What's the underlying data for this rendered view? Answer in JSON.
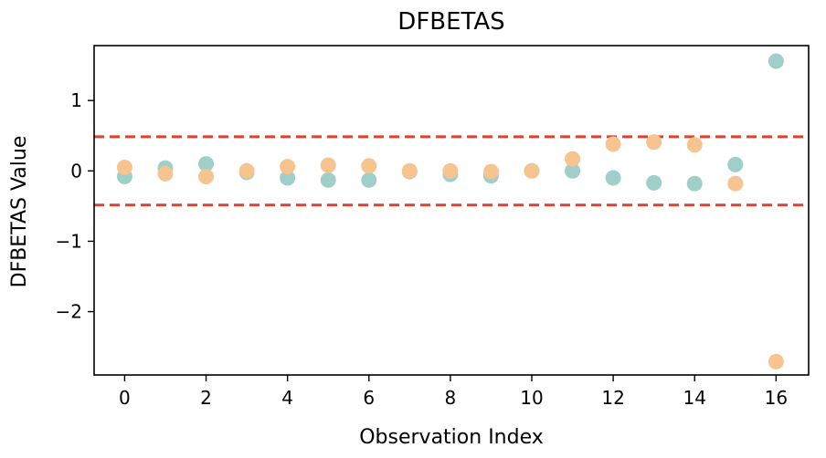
{
  "chart_data": {
    "type": "scatter",
    "title": "DFBETAS",
    "xlabel": "Observation Index",
    "ylabel": "DFBETAS Value",
    "xlim": [
      -0.75,
      16.8
    ],
    "ylim": [
      -2.9,
      1.78
    ],
    "x_ticks": [
      0,
      2,
      4,
      6,
      8,
      10,
      12,
      14,
      16
    ],
    "x_tick_labels": [
      "0",
      "2",
      "4",
      "6",
      "8",
      "10",
      "12",
      "14",
      "16"
    ],
    "y_ticks": [
      1,
      0,
      -1,
      -2
    ],
    "y_tick_labels": [
      "1",
      "0",
      "−1",
      "−2"
    ],
    "grid": false,
    "legend": "none",
    "x": [
      0,
      1,
      2,
      3,
      4,
      5,
      6,
      7,
      8,
      9,
      10,
      11,
      12,
      13,
      14,
      15,
      16
    ],
    "series": [
      {
        "color": "#9fcfc8",
        "values": [
          -0.08,
          0.04,
          0.1,
          -0.02,
          -0.1,
          -0.13,
          -0.13,
          -0.01,
          -0.05,
          -0.07,
          0.0,
          0.0,
          -0.1,
          -0.17,
          -0.18,
          0.09,
          1.56
        ]
      },
      {
        "color": "#f6c48f",
        "values": [
          0.05,
          -0.04,
          -0.08,
          0.0,
          0.06,
          0.08,
          0.07,
          0.0,
          0.0,
          -0.01,
          0.0,
          0.17,
          0.38,
          0.41,
          0.37,
          -0.18,
          -2.71
        ]
      }
    ],
    "threshold_lines": {
      "values": [
        0.485,
        -0.485
      ],
      "color": "#e0402f",
      "style": "dashed"
    }
  }
}
